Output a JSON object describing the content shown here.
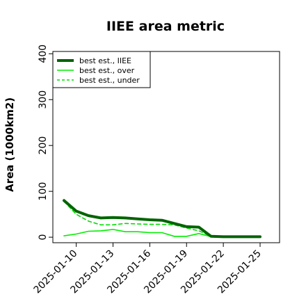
{
  "chart_data": {
    "type": "line",
    "title": "IIEE area metric",
    "xlabel": "",
    "ylabel": "Area (1000km2)",
    "ylim": [
      -12,
      405
    ],
    "xlim": [
      "2025-01-08",
      "2025-01-25"
    ],
    "x_ticks": [
      "2025-01-10",
      "2025-01-13",
      "2025-01-16",
      "2025-01-19",
      "2025-01-22",
      "2025-01-25"
    ],
    "y_ticks": [
      0,
      100,
      200,
      300,
      400
    ],
    "grid": false,
    "legend_position": "top-left",
    "x": [
      "2025-01-09",
      "2025-01-10",
      "2025-01-11",
      "2025-01-12",
      "2025-01-13",
      "2025-01-14",
      "2025-01-15",
      "2025-01-16",
      "2025-01-17",
      "2025-01-18",
      "2025-01-19",
      "2025-01-20",
      "2025-01-21",
      "2025-01-22",
      "2025-01-23",
      "2025-01-24",
      "2025-01-25"
    ],
    "series": [
      {
        "name": "best est., IIEE",
        "color": "#006400",
        "style": "solid-thick",
        "values": [
          80,
          57,
          47,
          42,
          43,
          42,
          40,
          38,
          37,
          30,
          23,
          22,
          2,
          1,
          1,
          1,
          1
        ]
      },
      {
        "name": "best est., over",
        "color": "#00ee00",
        "style": "solid",
        "values": [
          3,
          7,
          13,
          14,
          17,
          12,
          12,
          10,
          10,
          2,
          2,
          8,
          1,
          0,
          0,
          0,
          0
        ]
      },
      {
        "name": "best est., under",
        "color": "#00dd00",
        "style": "dashed",
        "values": [
          78,
          50,
          35,
          27,
          27,
          30,
          29,
          28,
          28,
          27,
          20,
          14,
          2,
          1,
          1,
          1,
          1
        ]
      }
    ]
  }
}
